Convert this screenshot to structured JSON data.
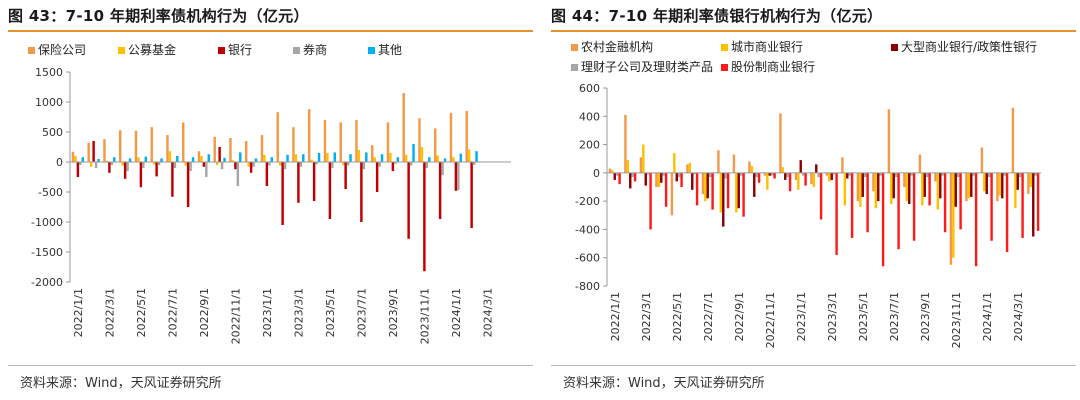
{
  "panels": [
    {
      "title": "图 43：7-10 年期利率债机构行为（亿元）",
      "source": "资料来源：Wind，天风证券研究所"
    },
    {
      "title": "图 44：7-10 年期利率债银行机构行为（亿元）",
      "source": "资料来源：Wind，天风证券研究所"
    }
  ],
  "chart_data": [
    {
      "type": "bar",
      "title": "",
      "xlabel": "",
      "ylabel": "",
      "ylim": [
        -2000,
        1500
      ],
      "yticks": [
        -2000,
        -1500,
        -1000,
        -500,
        0,
        500,
        1000,
        1500
      ],
      "x_tick_labels": [
        "2022/1/1",
        "2022/3/1",
        "2022/5/1",
        "2022/7/1",
        "2022/9/1",
        "2022/11/1",
        "2023/1/1",
        "2023/3/1",
        "2023/5/1",
        "2023/7/1",
        "2023/9/1",
        "2023/11/1",
        "2024/1/1",
        "2024/3/1"
      ],
      "legend_position": "top",
      "grid": false,
      "categories": [
        "2022/1",
        "2022/2",
        "2022/3",
        "2022/4",
        "2022/5",
        "2022/6",
        "2022/7",
        "2022/8",
        "2022/9",
        "2022/10",
        "2022/11",
        "2022/12",
        "2023/1",
        "2023/2",
        "2023/3",
        "2023/4",
        "2023/5",
        "2023/6",
        "2023/7",
        "2023/8",
        "2023/9",
        "2023/10",
        "2023/11",
        "2023/12",
        "2024/1",
        "2024/2",
        "2024/3",
        "2024/4"
      ],
      "series": [
        {
          "name": "保险公司",
          "color": "#F39A4A",
          "values": [
            170,
            320,
            380,
            530,
            520,
            580,
            450,
            660,
            180,
            420,
            400,
            350,
            450,
            830,
            580,
            880,
            700,
            660,
            700,
            280,
            660,
            1150,
            730,
            560,
            820,
            850,
            0,
            0
          ]
        },
        {
          "name": "公募基金",
          "color": "#FFC000",
          "values": [
            100,
            -80,
            20,
            -60,
            80,
            -40,
            180,
            -60,
            100,
            -50,
            30,
            -80,
            120,
            -60,
            130,
            40,
            150,
            -50,
            200,
            80,
            150,
            120,
            250,
            110,
            80,
            210,
            0,
            0
          ]
        },
        {
          "name": "银行",
          "color": "#C00000",
          "values": [
            -250,
            350,
            -180,
            -280,
            -420,
            -240,
            -580,
            -750,
            -80,
            250,
            -120,
            -180,
            -400,
            -1050,
            -680,
            -650,
            -950,
            -450,
            -1000,
            -500,
            -150,
            -1280,
            -1820,
            -950,
            -480,
            -1100,
            0,
            0
          ]
        },
        {
          "name": "券商",
          "color": "#A6A6A6",
          "values": [
            -50,
            -100,
            -50,
            -150,
            -100,
            -50,
            -100,
            -150,
            -250,
            -120,
            -400,
            -80,
            -60,
            -120,
            -80,
            -40,
            -100,
            -60,
            -120,
            -80,
            -30,
            -60,
            -100,
            -220,
            -470,
            -50,
            0,
            0
          ]
        },
        {
          "name": "其他",
          "color": "#00B0F0",
          "values": [
            80,
            50,
            80,
            60,
            90,
            60,
            100,
            80,
            130,
            70,
            160,
            60,
            80,
            120,
            130,
            150,
            160,
            130,
            160,
            130,
            80,
            300,
            80,
            60,
            140,
            180,
            0,
            0
          ]
        }
      ]
    },
    {
      "type": "bar",
      "title": "",
      "xlabel": "",
      "ylabel": "",
      "ylim": [
        -800,
        600
      ],
      "yticks": [
        -800,
        -600,
        -400,
        -200,
        0,
        200,
        400,
        600
      ],
      "x_tick_labels": [
        "2022/1/1",
        "2022/3/1",
        "2022/5/1",
        "2022/7/1",
        "2022/9/1",
        "2022/11/1",
        "2023/1/1",
        "2023/3/1",
        "2023/5/1",
        "2023/7/1",
        "2023/9/1",
        "2023/11/1",
        "2024/1/1",
        "2024/3/1"
      ],
      "legend_position": "top",
      "grid": false,
      "categories": [
        "2022/1",
        "2022/2",
        "2022/3",
        "2022/4",
        "2022/5",
        "2022/6",
        "2022/7",
        "2022/8",
        "2022/9",
        "2022/10",
        "2022/11",
        "2022/12",
        "2023/1",
        "2023/2",
        "2023/3",
        "2023/4",
        "2023/5",
        "2023/6",
        "2023/7",
        "2023/8",
        "2023/9",
        "2023/10",
        "2023/11",
        "2023/12",
        "2024/1",
        "2024/2",
        "2024/3",
        "2024/4"
      ],
      "series": [
        {
          "name": "农村金融机构",
          "color": "#F39A4A",
          "values": [
            30,
            410,
            110,
            -100,
            -300,
            60,
            -150,
            160,
            130,
            80,
            -20,
            420,
            -50,
            -80,
            -20,
            110,
            -200,
            -130,
            450,
            -100,
            130,
            -60,
            -650,
            -200,
            180,
            -200,
            460,
            -150
          ]
        },
        {
          "name": "城市商业银行",
          "color": "#FFC000",
          "values": [
            20,
            90,
            200,
            -100,
            140,
            70,
            -200,
            -280,
            -280,
            50,
            -120,
            40,
            -120,
            -100,
            -60,
            -230,
            -240,
            -250,
            -220,
            -200,
            -230,
            -260,
            -600,
            -180,
            -130,
            -160,
            -250,
            -100
          ]
        },
        {
          "name": "大型商业银行/政策性银行",
          "color": "#8B0000",
          "values": [
            -50,
            -110,
            -90,
            -70,
            -60,
            -120,
            -180,
            -380,
            -250,
            -170,
            -20,
            -50,
            90,
            60,
            -50,
            -40,
            -170,
            -200,
            -180,
            -220,
            -170,
            -180,
            -240,
            -170,
            -150,
            -180,
            -120,
            -450
          ]
        },
        {
          "name": "理财子公司及理财类产品",
          "color": "#A6A6A6",
          "values": [
            -20,
            -30,
            -10,
            -20,
            -30,
            -10,
            -30,
            -40,
            -20,
            -30,
            -20,
            -30,
            -20,
            -30,
            -10,
            -20,
            -30,
            -20,
            -30,
            -20,
            -30,
            -20,
            -30,
            -20,
            -30,
            -20,
            -30,
            -20
          ]
        },
        {
          "name": "股份制商业银行",
          "color": "#FF1A1A",
          "values": [
            -80,
            -60,
            -400,
            -240,
            -100,
            -230,
            -260,
            -250,
            -310,
            -70,
            -40,
            -130,
            -90,
            -330,
            -580,
            -460,
            -420,
            -660,
            -540,
            -480,
            -230,
            -420,
            -400,
            -660,
            -480,
            -560,
            -460,
            -410
          ]
        }
      ]
    }
  ]
}
